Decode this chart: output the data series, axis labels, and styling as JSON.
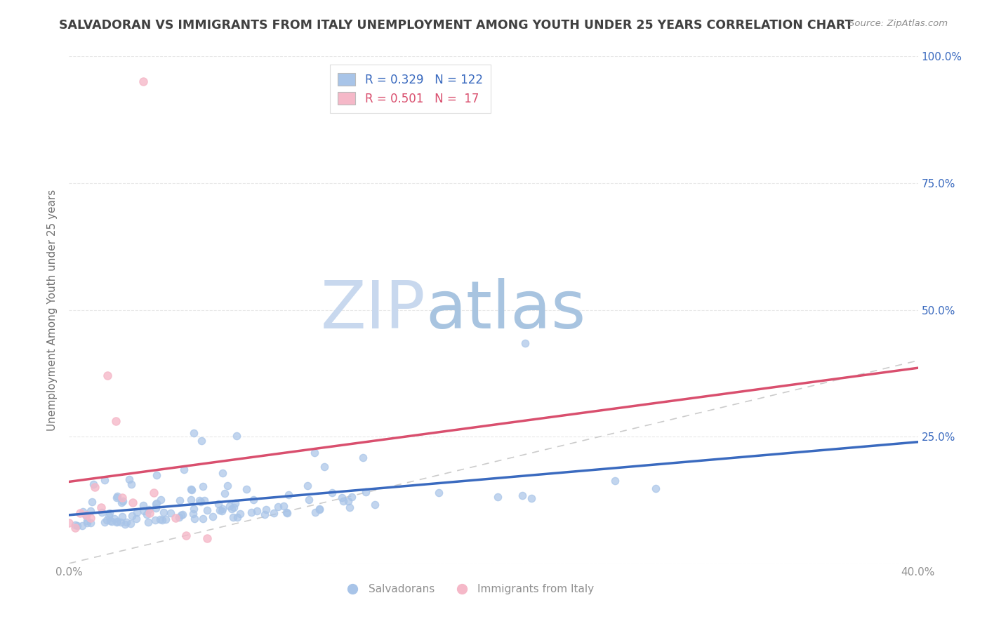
{
  "title": "SALVADORAN VS IMMIGRANTS FROM ITALY UNEMPLOYMENT AMONG YOUTH UNDER 25 YEARS CORRELATION CHART",
  "source": "Source: ZipAtlas.com",
  "ylabel": "Unemployment Among Youth under 25 years",
  "watermark_zip": "ZIP",
  "watermark_atlas": "atlas",
  "xlim": [
    0.0,
    0.4
  ],
  "ylim": [
    0.0,
    1.0
  ],
  "xtick_vals": [
    0.0,
    0.1,
    0.2,
    0.3,
    0.4
  ],
  "xticklabels": [
    "0.0%",
    "",
    "",
    "",
    "40.0%"
  ],
  "ytick_vals": [
    0.0,
    0.25,
    0.5,
    0.75,
    1.0
  ],
  "right_ytick_vals": [
    0.25,
    0.5,
    0.75,
    1.0
  ],
  "right_yticklabels": [
    "25.0%",
    "50.0%",
    "75.0%",
    "100.0%"
  ],
  "salvadoran_R": 0.329,
  "salvadoran_N": 122,
  "italy_R": 0.501,
  "italy_N": 17,
  "blue_scatter_color": "#a8c4e8",
  "pink_scatter_color": "#f5b8c8",
  "blue_line_color": "#3a6abf",
  "pink_line_color": "#d94f6e",
  "title_color": "#404040",
  "source_color": "#909090",
  "axis_label_color": "#707070",
  "tick_color": "#909090",
  "grid_color": "#e8e8e8",
  "watermark_zip_color": "#c8d8ee",
  "watermark_atlas_color": "#a8c4e0",
  "right_tick_color": "#3a6abf",
  "legend_blue_label": "Salvadorans",
  "legend_pink_label": "Immigrants from Italy",
  "scatter_size": 55,
  "scatter_alpha": 0.7,
  "scatter_lw": 1.0
}
